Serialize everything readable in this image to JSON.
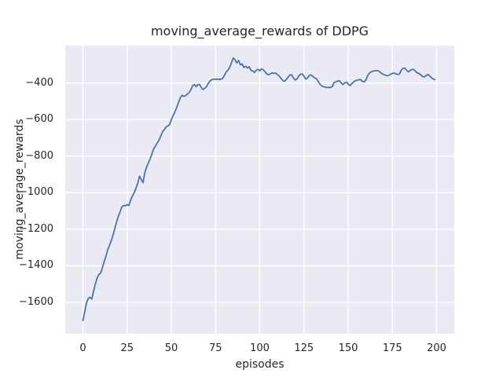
{
  "chart_data": {
    "type": "line",
    "title": "moving_average_rewards of DDPG",
    "xlabel": "episodes",
    "ylabel": "moving_average_rewards",
    "xlim": [
      -10,
      210
    ],
    "ylim": [
      -1772,
      -195
    ],
    "xticks": [
      0,
      25,
      50,
      75,
      100,
      125,
      150,
      175,
      200
    ],
    "yticks": [
      -400,
      -600,
      -800,
      -1000,
      -1200,
      -1400,
      -1600
    ],
    "xtick_labels": [
      "0",
      "25",
      "50",
      "75",
      "100",
      "125",
      "150",
      "175",
      "200"
    ],
    "ytick_labels": [
      "−400",
      "−600",
      "−800",
      "−1000",
      "−1200",
      "−1400",
      "−1600"
    ],
    "grid": true,
    "legend": "none",
    "style": {
      "axes_background": "#eaeaf2",
      "grid_color": "#ffffff",
      "line_color": "#4c72b0",
      "text_color": "#262626",
      "line_width": 1.8,
      "grid_width": 1.3
    },
    "series": [
      {
        "name": "moving_average_rewards",
        "x": [
          0,
          1,
          2,
          3,
          4,
          5,
          6,
          7,
          8,
          9,
          10,
          11,
          12,
          13,
          14,
          15,
          16,
          17,
          18,
          19,
          20,
          21,
          22,
          23,
          24,
          25,
          26,
          27,
          28,
          29,
          30,
          31,
          32,
          33,
          34,
          35,
          36,
          37,
          38,
          39,
          40,
          41,
          42,
          43,
          44,
          45,
          46,
          47,
          48,
          49,
          50,
          51,
          52,
          53,
          54,
          55,
          56,
          57,
          58,
          59,
          60,
          61,
          62,
          63,
          64,
          65,
          66,
          67,
          68,
          69,
          70,
          71,
          72,
          73,
          74,
          75,
          76,
          77,
          78,
          79,
          80,
          81,
          82,
          83,
          84,
          85,
          86,
          87,
          88,
          89,
          90,
          91,
          92,
          93,
          94,
          95,
          96,
          97,
          98,
          99,
          100,
          101,
          102,
          103,
          104,
          105,
          106,
          107,
          108,
          109,
          110,
          111,
          112,
          113,
          114,
          115,
          116,
          117,
          118,
          119,
          120,
          121,
          122,
          123,
          124,
          125,
          126,
          127,
          128,
          129,
          130,
          131,
          132,
          133,
          134,
          135,
          136,
          137,
          138,
          139,
          140,
          141,
          142,
          143,
          144,
          145,
          146,
          147,
          148,
          149,
          150,
          151,
          152,
          153,
          154,
          155,
          156,
          157,
          158,
          159,
          160,
          161,
          162,
          163,
          164,
          165,
          166,
          167,
          168,
          169,
          170,
          171,
          172,
          173,
          174,
          175,
          176,
          177,
          178,
          179,
          180,
          181,
          182,
          183,
          184,
          185,
          186,
          187,
          188,
          189,
          190,
          191,
          192,
          193,
          194,
          195,
          196,
          197,
          198,
          199
        ],
        "y": [
          -1700,
          -1652,
          -1605,
          -1578,
          -1572,
          -1582,
          -1540,
          -1500,
          -1468,
          -1448,
          -1440,
          -1410,
          -1378,
          -1348,
          -1313,
          -1288,
          -1263,
          -1232,
          -1198,
          -1160,
          -1130,
          -1105,
          -1078,
          -1070,
          -1072,
          -1065,
          -1070,
          -1040,
          -1018,
          -1000,
          -975,
          -948,
          -910,
          -928,
          -945,
          -890,
          -860,
          -838,
          -815,
          -788,
          -760,
          -745,
          -728,
          -713,
          -690,
          -667,
          -655,
          -640,
          -634,
          -628,
          -600,
          -578,
          -558,
          -535,
          -508,
          -482,
          -467,
          -473,
          -469,
          -461,
          -453,
          -438,
          -415,
          -408,
          -420,
          -409,
          -408,
          -426,
          -435,
          -428,
          -418,
          -400,
          -388,
          -381,
          -379,
          -380,
          -378,
          -380,
          -379,
          -375,
          -358,
          -340,
          -329,
          -314,
          -290,
          -263,
          -272,
          -290,
          -276,
          -300,
          -295,
          -315,
          -308,
          -318,
          -311,
          -330,
          -334,
          -342,
          -330,
          -325,
          -333,
          -322,
          -328,
          -338,
          -350,
          -355,
          -350,
          -344,
          -347,
          -346,
          -354,
          -362,
          -375,
          -386,
          -390,
          -380,
          -368,
          -356,
          -355,
          -372,
          -383,
          -378,
          -362,
          -352,
          -350,
          -363,
          -378,
          -372,
          -358,
          -356,
          -364,
          -372,
          -376,
          -390,
          -406,
          -416,
          -420,
          -422,
          -425,
          -423,
          -425,
          -419,
          -398,
          -393,
          -390,
          -388,
          -398,
          -408,
          -400,
          -395,
          -405,
          -414,
          -404,
          -395,
          -388,
          -385,
          -382,
          -381,
          -390,
          -394,
          -384,
          -360,
          -346,
          -339,
          -335,
          -333,
          -332,
          -333,
          -340,
          -348,
          -353,
          -357,
          -360,
          -358,
          -352,
          -347,
          -346,
          -350,
          -353,
          -351,
          -330,
          -320,
          -318,
          -330,
          -339,
          -332,
          -326,
          -325,
          -335,
          -345,
          -347,
          -355,
          -364,
          -367,
          -360,
          -353,
          -360,
          -370,
          -378,
          -381
        ]
      }
    ]
  }
}
